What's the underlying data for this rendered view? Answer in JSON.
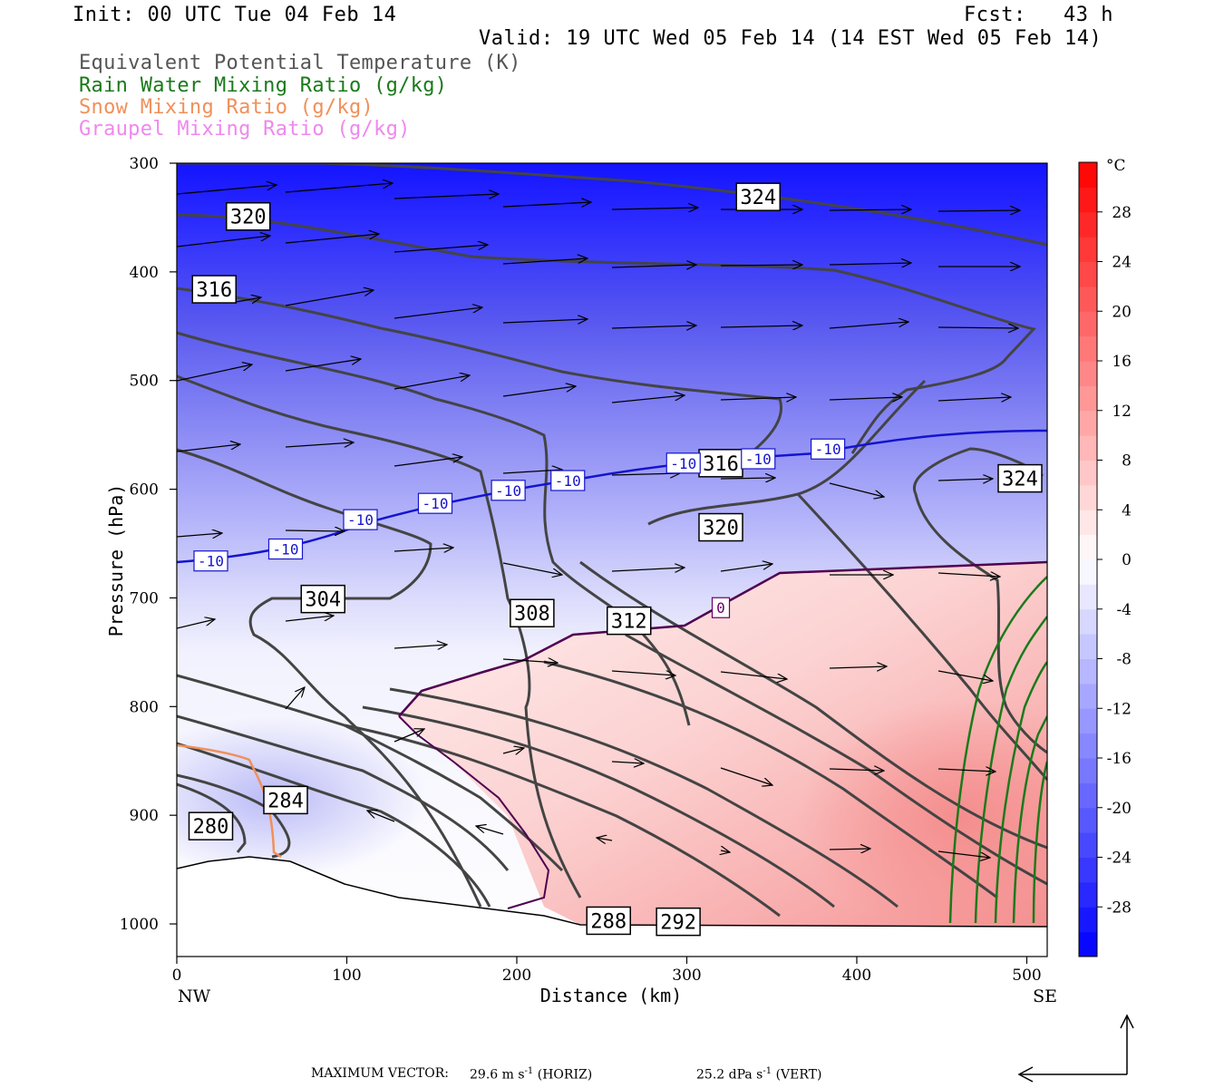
{
  "header": {
    "init": "Init: 00 UTC Tue 04 Feb 14",
    "fcst": "Fcst:   43 h",
    "valid": "Valid: 19 UTC Wed 05 Feb 14 (14 EST Wed 05 Feb 14)"
  },
  "legend": [
    {
      "label": "Equivalent Potential Temperature (K)",
      "color": "#555555"
    },
    {
      "label": "Rain Water Mixing Ratio (g/kg)",
      "color": "#1a7a1a"
    },
    {
      "label": "Snow Mixing Ratio (g/kg)",
      "color": "#f0905a"
    },
    {
      "label": "Graupel Mixing Ratio (g/kg)",
      "color": "#ee88ee"
    }
  ],
  "footer": {
    "max_vector": "MAXIMUM VECTOR:",
    "horiz_value": "29.6 m s",
    "horiz_unit_sup": "-1",
    "horiz_tag": "(HORIZ)",
    "vert_value": "25.2 dPa s",
    "vert_unit_sup": "-1",
    "vert_tag": "(VERT)"
  },
  "chart_data": {
    "type": "cross-section",
    "xlabel": "Distance (km)",
    "ylabel": "Pressure (hPa)",
    "x_ticks": [
      0,
      100,
      200,
      300,
      400,
      500
    ],
    "y_ticks": [
      300,
      400,
      500,
      600,
      700,
      800,
      900,
      1000
    ],
    "xlim": [
      0,
      512
    ],
    "ylim": [
      300,
      1030
    ],
    "y_axis": "pressure, increasing downward",
    "left_end": "NW",
    "right_end": "SE",
    "colorbar": {
      "unit": "°C",
      "labels": [
        28,
        24,
        20,
        16,
        12,
        8,
        4,
        0,
        -4,
        -8,
        -12,
        -16,
        -20,
        -24,
        -28
      ],
      "range": [
        -32,
        32
      ],
      "colors": {
        "cold": "#0000ff",
        "zero": "#ffffff",
        "warm": "#ff0000"
      }
    },
    "temperature_contour_labels": [
      {
        "text": "-10",
        "x": 20,
        "p": 666
      },
      {
        "text": "-10",
        "x": 64,
        "p": 655
      },
      {
        "text": "-10",
        "x": 108,
        "p": 628
      },
      {
        "text": "-10",
        "x": 152,
        "p": 613
      },
      {
        "text": "-10",
        "x": 195,
        "p": 601
      },
      {
        "text": "-10",
        "x": 230,
        "p": 592
      },
      {
        "text": "-10",
        "x": 298,
        "p": 576
      },
      {
        "text": "-10",
        "x": 342,
        "p": 572
      },
      {
        "text": "-10",
        "x": 383,
        "p": 563
      },
      {
        "text": "0",
        "x": 320,
        "p": 709
      }
    ],
    "theta_e_labels": [
      {
        "text": "324",
        "x": 342,
        "p": 331
      },
      {
        "text": "320",
        "x": 42,
        "p": 349
      },
      {
        "text": "316",
        "x": 22,
        "p": 416
      },
      {
        "text": "316",
        "x": 320,
        "p": 576
      },
      {
        "text": "324",
        "x": 496,
        "p": 590
      },
      {
        "text": "320",
        "x": 320,
        "p": 635
      },
      {
        "text": "304",
        "x": 86,
        "p": 701
      },
      {
        "text": "308",
        "x": 209,
        "p": 714
      },
      {
        "text": "312",
        "x": 266,
        "p": 721
      },
      {
        "text": "284",
        "x": 64,
        "p": 886
      },
      {
        "text": "280",
        "x": 20,
        "p": 910
      },
      {
        "text": "288",
        "x": 254,
        "p": 997
      },
      {
        "text": "292",
        "x": 295,
        "p": 998
      }
    ]
  }
}
